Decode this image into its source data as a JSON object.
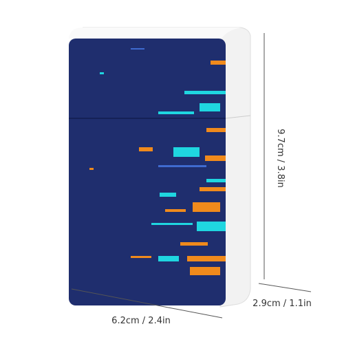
{
  "dimensions": {
    "width": "6.2cm / 2.4in",
    "depth": "2.9cm / 1.1in",
    "height": "9.7cm / 3.8in"
  }
}
